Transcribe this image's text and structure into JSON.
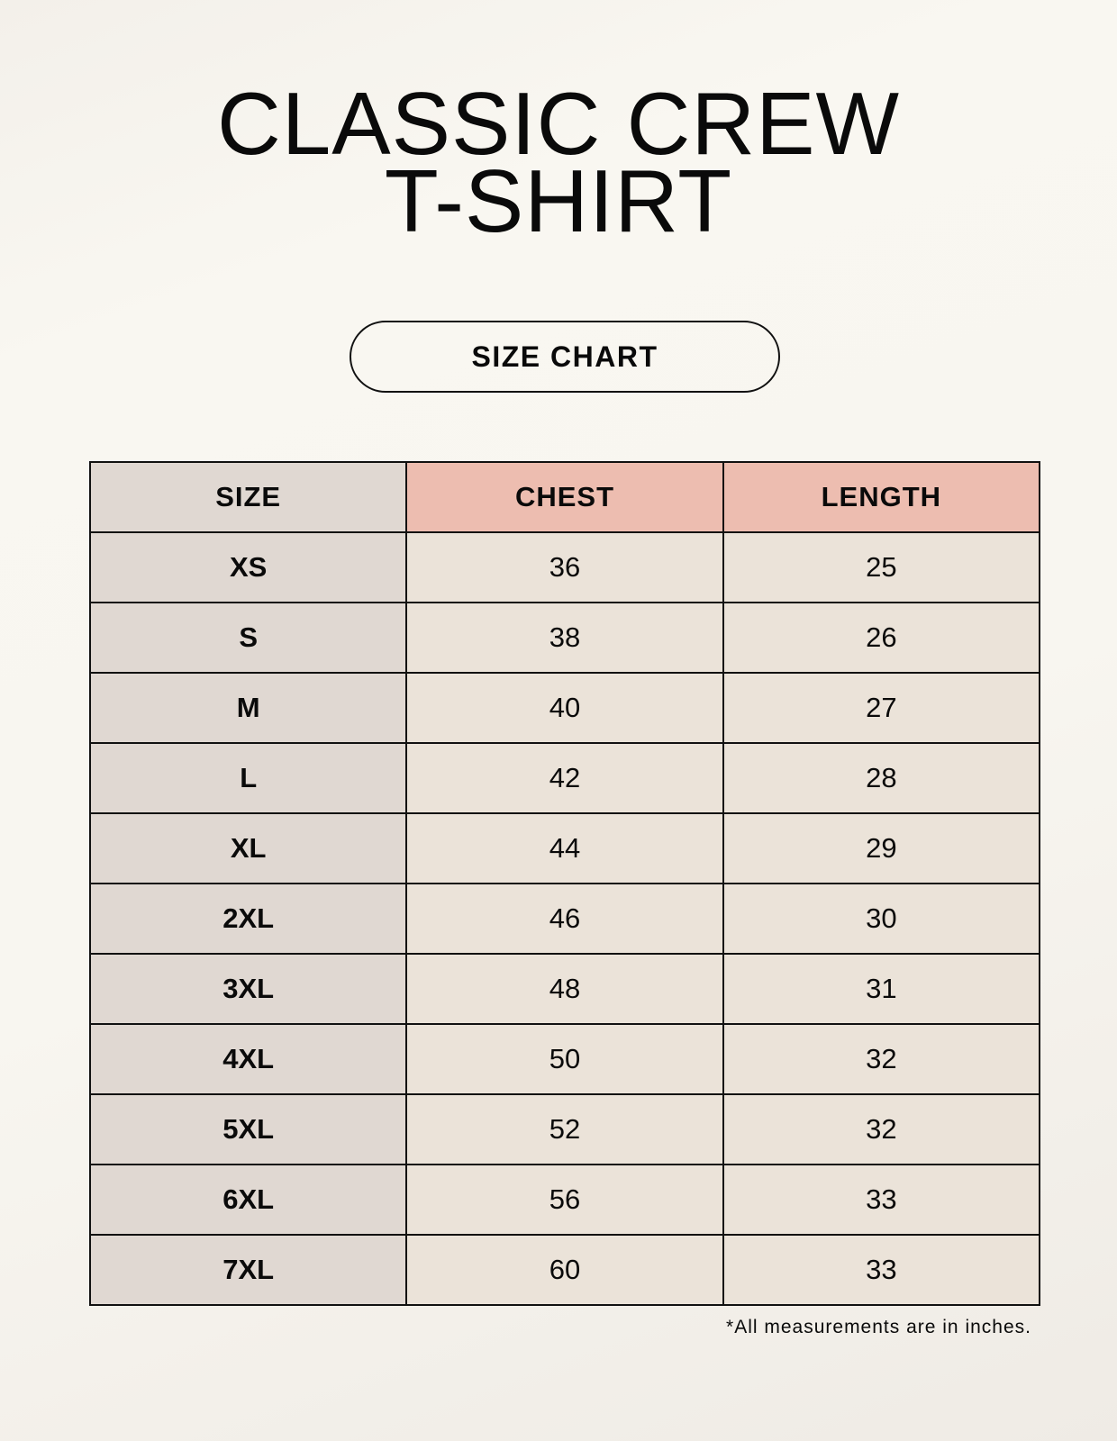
{
  "title": {
    "line1": "CLASSIC CREW",
    "line2": "T-SHIRT"
  },
  "badge": "SIZE CHART",
  "table": {
    "headers": [
      "SIZE",
      "CHEST",
      "LENGTH"
    ],
    "rows": [
      [
        "XS",
        "36",
        "25"
      ],
      [
        "S",
        "38",
        "26"
      ],
      [
        "M",
        "40",
        "27"
      ],
      [
        "L",
        "42",
        "28"
      ],
      [
        "XL",
        "44",
        "29"
      ],
      [
        "2XL",
        "46",
        "30"
      ],
      [
        "3XL",
        "48",
        "31"
      ],
      [
        "4XL",
        "50",
        "32"
      ],
      [
        "5XL",
        "52",
        "32"
      ],
      [
        "6XL",
        "56",
        "33"
      ],
      [
        "7XL",
        "60",
        "33"
      ]
    ]
  },
  "footnote": "*All measurements are in inches.",
  "colors": {
    "header_accent": "#edbdb0",
    "size_column": "#e0d8d2",
    "value_cells": "#ebe3d9"
  }
}
